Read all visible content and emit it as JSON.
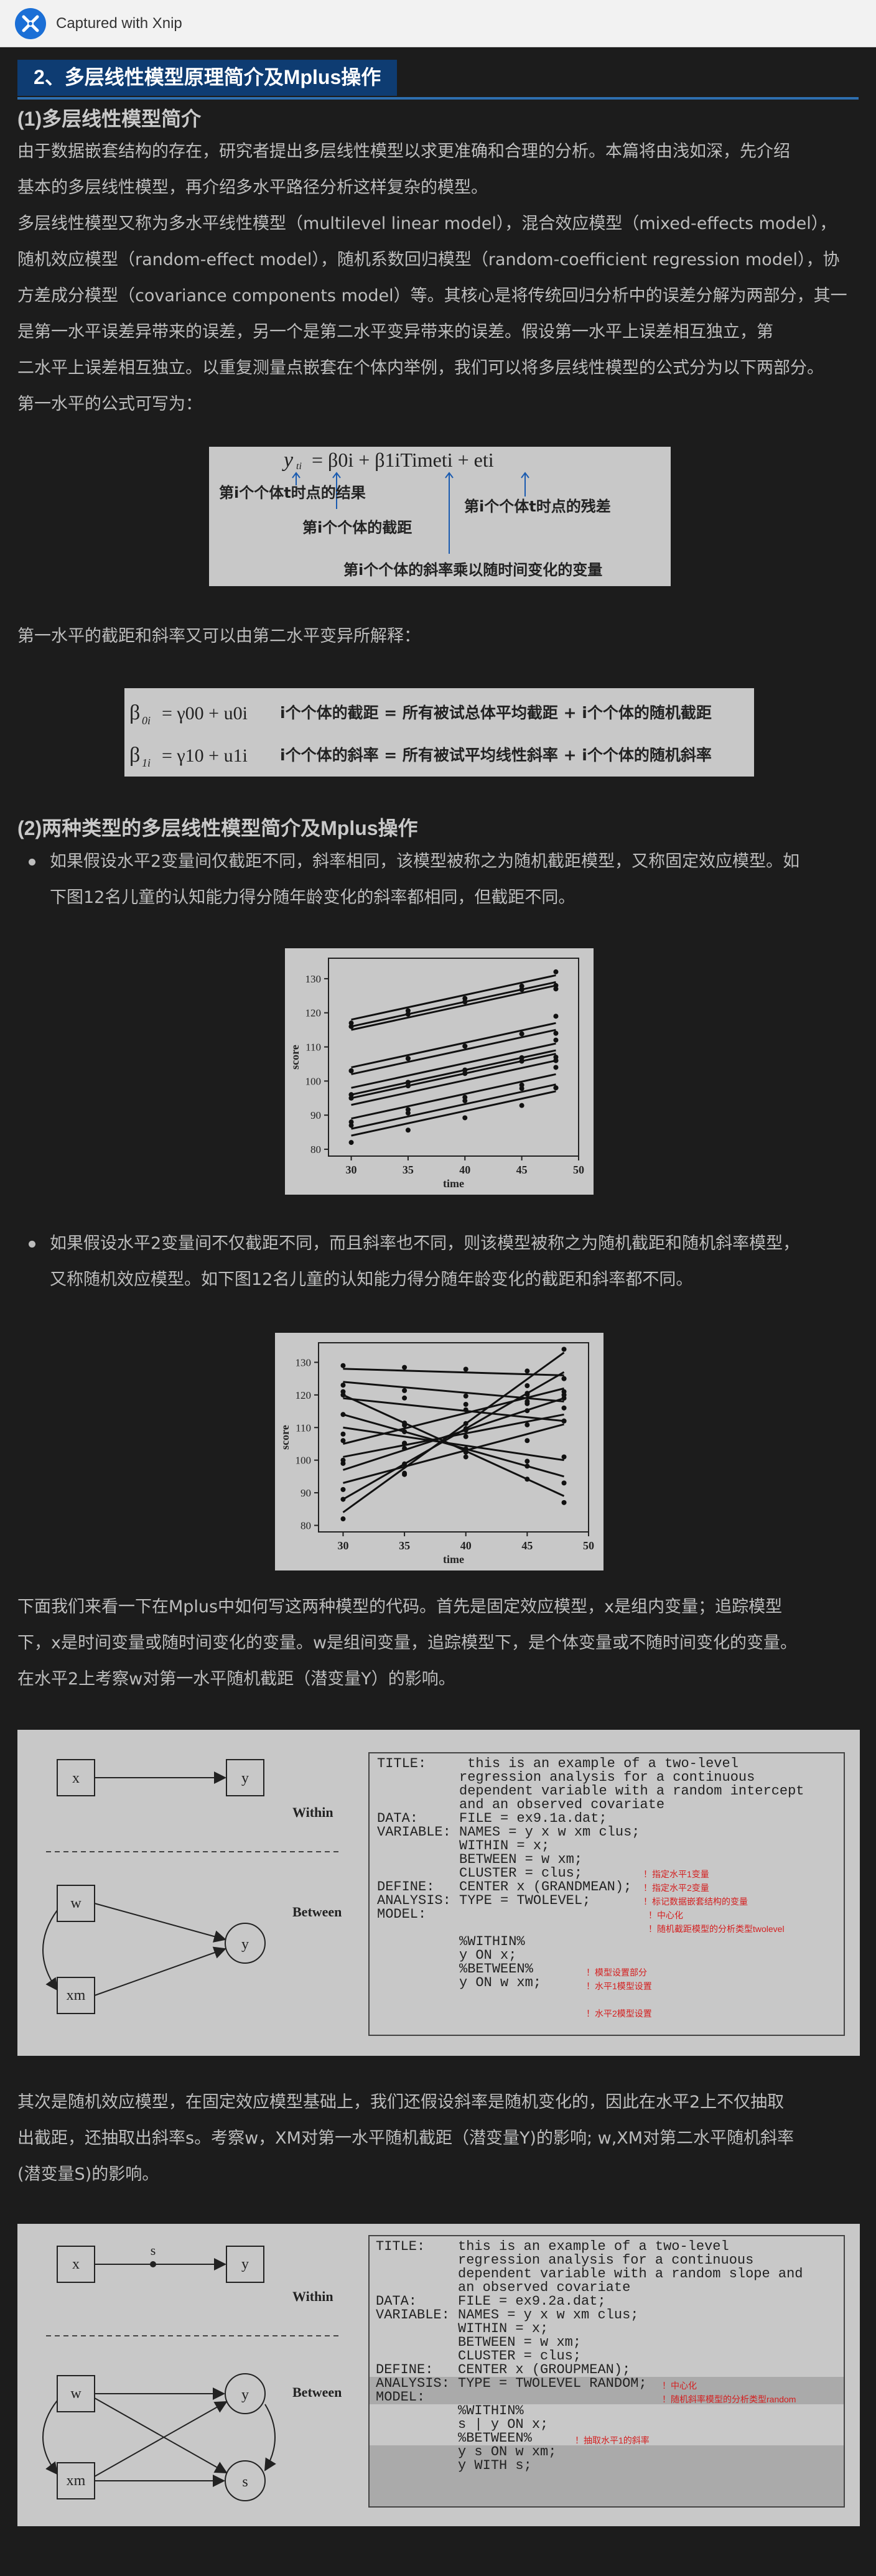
{
  "window": {
    "title": "Captured with Xnip"
  },
  "section_title": "2、多层线性模型原理简介及Mplus操作",
  "sub1": {
    "title": "(1)多层线性模型简介",
    "p1a": "由于数据嵌套结构的存在，研究者提出多层线性模型以求更准确和合理的分析。本篇将由浅如深，先介绍",
    "p1b": "基本的多层线性模型，再介绍多水平路径分析这样复杂的模型。",
    "p2": [
      "多层线性模型又称为多水平线性模型（multilevel linear model），混合效应模型（mixed-effects model），",
      "随机效应模型（random-effect model），随机系数回归模型（random-coefficient regression model），协",
      "方差成分模型（covariance components model）等。其核心是将传统回归分析中的误差分解为两部分，其一",
      "是第一水平误差异带来的误差，另一个是第二水平变异带来的误差。假设第一水平上误差相互独立，第",
      "二水平上误差相互独立。以重复测量点嵌套在个体内举例，我们可以将多层线性模型的公式分为以下两部分。",
      "第一水平的公式可写为："
    ],
    "p3": "第一水平的截距和斜率又可以由第二水平变异所解释："
  },
  "eq1": {
    "lhs": "y",
    "rhs": "= β0i + β1iTimeti + eti",
    "ann_outcome": "第i个个体t时点的结果",
    "ann_intercept": "第i个个体的截距",
    "ann_residual": "第i个个体t时点的残差",
    "ann_slope": "第i个个体的斜率乘以随时间变化的变量"
  },
  "eq2": {
    "row1_formula": "= γ00 + u0i",
    "row1_text": "i个个体的截距 = 所有被试总体平均截距 + i个个体的随机截距",
    "row2_formula": "= γ10 + u1i",
    "row2_text": "i个个体的斜率 = 所有被试平均线性斜率 + i个个体的随机斜率"
  },
  "sub2": {
    "title": "(2)两种类型的多层线性模型简介及Mplus操作",
    "b1": [
      "如果假设水平2变量间仅截距不同，斜率相同，该模型被称之为随机截距模型，又称固定效应模型。如",
      "下图12名儿童的认知能力得分随年龄变化的斜率都相同，但截距不同。"
    ],
    "b2": [
      "如果假设水平2变量间不仅截距不同，而且斜率也不同，则该模型被称之为随机截距和随机斜率模型，",
      "又称随机效应模型。如下图12名儿童的认知能力得分随年龄变化的截距和斜率都不同。"
    ],
    "p4": [
      "下面我们来看一下在Mplus中如何写这两种模型的代码。首先是固定效应模型，x是组内变量；追踪模型",
      "下，x是时间变量或随时间变化的变量。w是组间变量，追踪模型下，是个体变量或不随时间变化的变量。",
      "在水平2上考察w对第一水平随机截距（潜变量Y）的影响。"
    ],
    "p5": [
      "其次是随机效应模型，在固定效应模型基础上，我们还假设斜率是随机变化的，因此在水平2上不仅抽取",
      "出截距，还抽取出斜率s。考察w，XM对第一水平随机截距（潜变量Y)的影响; w,XM对第二水平随机斜率",
      "(潜变量S)的影响。"
    ]
  },
  "chart_common": {
    "ylabel": "score",
    "xlabel": "time",
    "xticks": [
      30,
      35,
      40,
      45,
      50
    ],
    "yticks": [
      80,
      90,
      100,
      110,
      120,
      130
    ]
  },
  "chart_data": [
    {
      "type": "line",
      "title": "",
      "xlabel": "time",
      "ylabel": "score",
      "xlim": [
        28,
        50
      ],
      "ylim": [
        78,
        136
      ],
      "series": [
        {
          "x": [
            30,
            48
          ],
          "values": [
            118,
            131
          ]
        },
        {
          "x": [
            30,
            48
          ],
          "values": [
            116,
            129
          ]
        },
        {
          "x": [
            30,
            48
          ],
          "values": [
            115,
            128
          ]
        },
        {
          "x": [
            30,
            48
          ],
          "values": [
            104,
            117
          ]
        },
        {
          "x": [
            30,
            48
          ],
          "values": [
            102,
            115
          ]
        },
        {
          "x": [
            30,
            48
          ],
          "values": [
            98,
            111
          ]
        },
        {
          "x": [
            30,
            48
          ],
          "values": [
            96,
            109
          ]
        },
        {
          "x": [
            30,
            48
          ],
          "values": [
            93,
            106
          ]
        },
        {
          "x": [
            30,
            48
          ],
          "values": [
            89,
            102
          ]
        },
        {
          "x": [
            30,
            48
          ],
          "values": [
            86,
            99
          ]
        },
        {
          "x": [
            30,
            48
          ],
          "values": [
            84,
            97
          ]
        },
        {
          "x": [
            30,
            48
          ],
          "values": [
            95,
            108
          ]
        }
      ]
    },
    {
      "type": "line",
      "title": "",
      "xlabel": "time",
      "ylabel": "score",
      "xlim": [
        28,
        50
      ],
      "ylim": [
        78,
        136
      ],
      "series": [
        {
          "x": [
            30,
            48
          ],
          "values": [
            84,
            133
          ]
        },
        {
          "x": [
            30,
            48
          ],
          "values": [
            88,
            127
          ]
        },
        {
          "x": [
            30,
            48
          ],
          "values": [
            97,
            119
          ]
        },
        {
          "x": [
            30,
            48
          ],
          "values": [
            101,
            114
          ]
        },
        {
          "x": [
            30,
            48
          ],
          "values": [
            105,
            122
          ]
        },
        {
          "x": [
            30,
            48
          ],
          "values": [
            110,
            100
          ]
        },
        {
          "x": [
            30,
            48
          ],
          "values": [
            114,
            95
          ]
        },
        {
          "x": [
            30,
            48
          ],
          "values": [
            119,
            112
          ]
        },
        {
          "x": [
            30,
            48
          ],
          "values": [
            124,
            118
          ]
        },
        {
          "x": [
            30,
            48
          ],
          "values": [
            128,
            126
          ]
        },
        {
          "x": [
            30,
            48
          ],
          "values": [
            93,
            111
          ]
        },
        {
          "x": [
            30,
            48
          ],
          "values": [
            120,
            89
          ]
        }
      ]
    }
  ],
  "diagram1": {
    "nodes": {
      "x": "x",
      "y": "y",
      "w": "w",
      "xm": "xm",
      "yb": "y"
    },
    "within_label": "Within",
    "between_label": "Between",
    "code": [
      "TITLE:     this is an example of a two-level",
      "          regression analysis for a continuous",
      "          dependent variable with a random intercept",
      "          and an observed covariate",
      "DATA:     FILE = ex9.1a.dat;",
      "VARIABLE: NAMES = y x w xm clus;",
      "          WITHIN = x;",
      "          BETWEEN = w xm;",
      "          CLUSTER = clus;",
      "DEFINE:   CENTER x (GRANDMEAN);",
      "ANALYSIS: TYPE = TWOLEVEL;",
      "MODEL:",
      "",
      "          %WITHIN%",
      "          y ON x;",
      "          %BETWEEN%",
      "          y ON w xm;"
    ],
    "notes": [
      "！指定水平1变量",
      "！指定水平2变量",
      "！标记数据嵌套结构的变量",
      "！中心化",
      "！随机截距模型的分析类型twolevel",
      "！模型设置部分",
      "！水平1模型设置",
      "！水平2模型设置"
    ]
  },
  "diagram2": {
    "nodes": {
      "x": "x",
      "y": "y",
      "s_path": "s",
      "w": "w",
      "xm": "xm",
      "yb": "y",
      "sb": "s"
    },
    "within_label": "Within",
    "between_label": "Between",
    "code": [
      "TITLE:    this is an example of a two-level",
      "          regression analysis for a continuous",
      "          dependent variable with a random slope and",
      "          an observed covariate",
      "DATA:     FILE = ex9.2a.dat;",
      "VARIABLE: NAMES = y x w xm clus;",
      "          WITHIN = x;",
      "          BETWEEN = w xm;",
      "          CLUSTER = clus;",
      "DEFINE:   CENTER x (GROUPMEAN);",
      "ANALYSIS: TYPE = TWOLEVEL RANDOM;",
      "MODEL:",
      "          %WITHIN%",
      "          s | y ON x;",
      "          %BETWEEN%",
      "          y s ON w xm;",
      "          y WITH s;"
    ],
    "notes": [
      "！中心化",
      "！随机斜率模型的分析类型random",
      "！抽取水平1的斜率"
    ]
  },
  "colors": {
    "accent": "#0e3c72",
    "underline": "#2e6fb0",
    "background": "#1c1c1c",
    "text": "#bdbdbd",
    "note": "#d42020"
  },
  "icons": {
    "logo": "xnip-logo-icon"
  }
}
